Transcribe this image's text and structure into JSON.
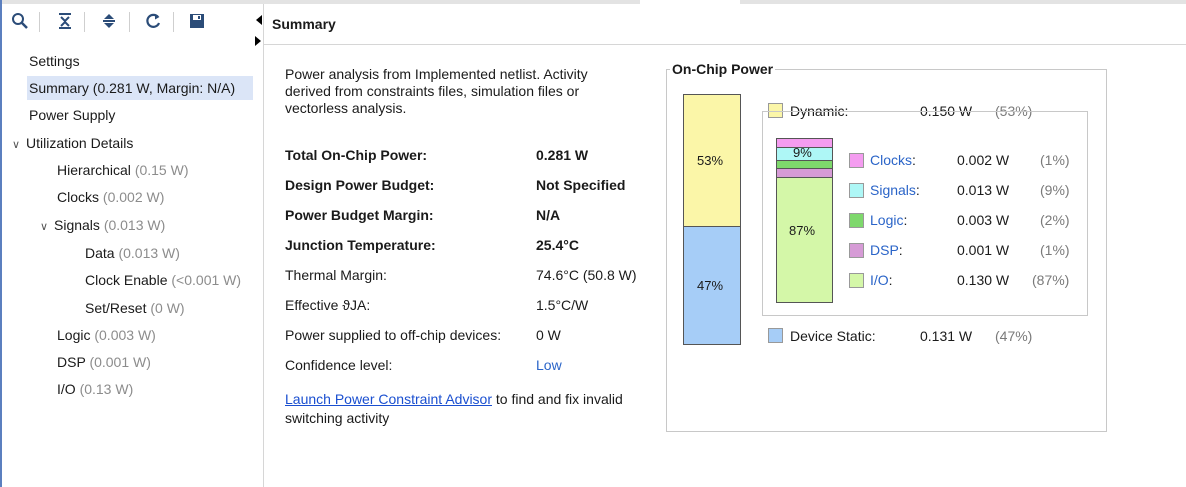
{
  "toolbar": {
    "buttons": [
      {
        "name": "search-icon"
      },
      {
        "name": "collapse-all-icon"
      },
      {
        "name": "expand-all-icon"
      },
      {
        "name": "refresh-icon"
      },
      {
        "name": "save-icon"
      }
    ]
  },
  "tree": {
    "settings": "Settings",
    "summary": "Summary (0.281 W, Margin: N/A)",
    "power_supply": "Power Supply",
    "utilization": "Utilization Details",
    "hierarchical": {
      "label": "Hierarchical",
      "value": "(0.15 W)"
    },
    "clocks": {
      "label": "Clocks",
      "value": "(0.002 W)"
    },
    "signals": {
      "label": "Signals",
      "value": "(0.013 W)"
    },
    "data": {
      "label": "Data",
      "value": "(0.013 W)"
    },
    "clock_enable": {
      "label": "Clock Enable",
      "value": "(<0.001 W)"
    },
    "set_reset": {
      "label": "Set/Reset",
      "value": "(0 W)"
    },
    "logic": {
      "label": "Logic",
      "value": "(0.003 W)"
    },
    "dsp": {
      "label": "DSP",
      "value": "(0.001 W)"
    },
    "io": {
      "label": "I/O",
      "value": "(0.13 W)"
    }
  },
  "header": {
    "title": "Summary"
  },
  "summary": {
    "description": "Power analysis from Implemented netlist. Activity derived from constraints files, simulation files or vectorless analysis.",
    "rows": [
      {
        "label": "Total On-Chip Power:",
        "value": "0.281 W"
      },
      {
        "label": "Design Power Budget:",
        "value": "Not Specified"
      },
      {
        "label": "Power Budget Margin:",
        "value": "N/A"
      },
      {
        "label": "Junction Temperature:",
        "value": "25.4°C"
      },
      {
        "label": "Thermal Margin:",
        "value": "74.6°C (50.8 W)"
      },
      {
        "label": "Effective ϑJA:",
        "value": "1.5°C/W"
      },
      {
        "label": "Power supplied to off-chip devices:",
        "value": "0 W"
      },
      {
        "label": "Confidence level:",
        "value": "Low"
      }
    ],
    "advisor_link": "Launch Power Constraint Advisor",
    "advisor_text": " to find and fix invalid switching activity"
  },
  "chart": {
    "title": "On-Chip Power",
    "dynamic": {
      "label": "Dynamic:",
      "value": "0.150 W",
      "pct": "(53%)",
      "bar_label": "53%",
      "share": 0.53
    },
    "static": {
      "label": "Device Static:",
      "value": "0.131 W",
      "pct": "(47%)",
      "bar_label": "47%",
      "share": 0.47
    },
    "breakdown": [
      {
        "label": "Clocks",
        "value": "0.002 W",
        "pct": "(1%)",
        "color": "#f49cf0",
        "share": 0.01
      },
      {
        "label": "Signals",
        "value": "0.013 W",
        "pct": "(9%)",
        "color": "#aef7f6",
        "share": 0.09,
        "bar_label": "9%"
      },
      {
        "label": "Logic",
        "value": "0.003 W",
        "pct": "(2%)",
        "color": "#7ed86c",
        "share": 0.02
      },
      {
        "label": "DSP",
        "value": "0.001 W",
        "pct": "(1%)",
        "color": "#d69bd6",
        "share": 0.01
      },
      {
        "label": "I/O",
        "value": "0.130 W",
        "pct": "(87%)",
        "color": "#d4f7a8",
        "share": 0.87,
        "bar_label": "87%"
      }
    ],
    "colors": {
      "dynamic": "#fbf6a8",
      "static": "#a6cdf7",
      "link": "#2a64c8"
    }
  }
}
